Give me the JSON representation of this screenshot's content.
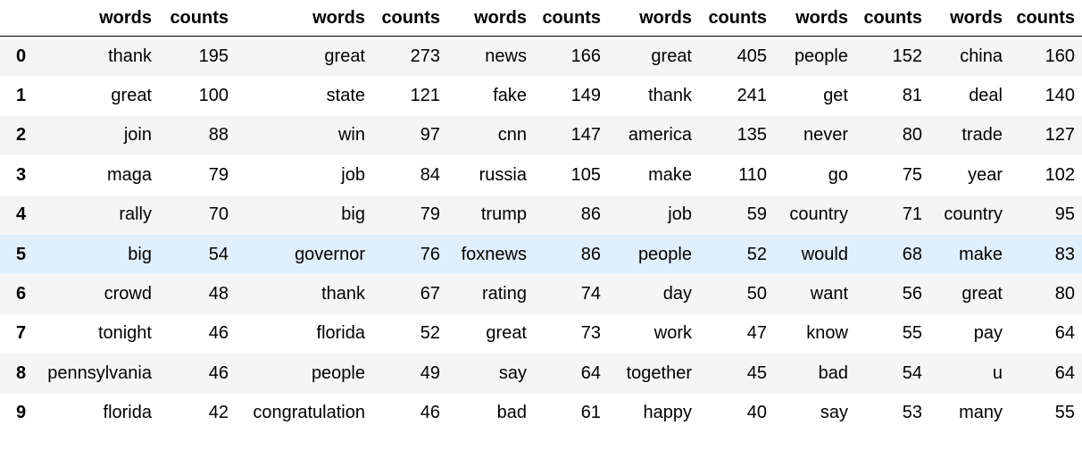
{
  "table": {
    "index_header": "",
    "columns": [
      "words",
      "counts",
      "words",
      "counts",
      "words",
      "counts",
      "words",
      "counts",
      "words",
      "counts",
      "words",
      "counts"
    ],
    "highlight_row": 5,
    "rows": [
      {
        "index": "0",
        "cells": [
          "thank",
          "195",
          "great",
          "273",
          "news",
          "166",
          "great",
          "405",
          "people",
          "152",
          "china",
          "160"
        ]
      },
      {
        "index": "1",
        "cells": [
          "great",
          "100",
          "state",
          "121",
          "fake",
          "149",
          "thank",
          "241",
          "get",
          "81",
          "deal",
          "140"
        ]
      },
      {
        "index": "2",
        "cells": [
          "join",
          "88",
          "win",
          "97",
          "cnn",
          "147",
          "america",
          "135",
          "never",
          "80",
          "trade",
          "127"
        ]
      },
      {
        "index": "3",
        "cells": [
          "maga",
          "79",
          "job",
          "84",
          "russia",
          "105",
          "make",
          "110",
          "go",
          "75",
          "year",
          "102"
        ]
      },
      {
        "index": "4",
        "cells": [
          "rally",
          "70",
          "big",
          "79",
          "trump",
          "86",
          "job",
          "59",
          "country",
          "71",
          "country",
          "95"
        ]
      },
      {
        "index": "5",
        "cells": [
          "big",
          "54",
          "governor",
          "76",
          "foxnews",
          "86",
          "people",
          "52",
          "would",
          "68",
          "make",
          "83"
        ]
      },
      {
        "index": "6",
        "cells": [
          "crowd",
          "48",
          "thank",
          "67",
          "rating",
          "74",
          "day",
          "50",
          "want",
          "56",
          "great",
          "80"
        ]
      },
      {
        "index": "7",
        "cells": [
          "tonight",
          "46",
          "florida",
          "52",
          "great",
          "73",
          "work",
          "47",
          "know",
          "55",
          "pay",
          "64"
        ]
      },
      {
        "index": "8",
        "cells": [
          "pennsylvania",
          "46",
          "people",
          "49",
          "say",
          "64",
          "together",
          "45",
          "bad",
          "54",
          "u",
          "64"
        ]
      },
      {
        "index": "9",
        "cells": [
          "florida",
          "42",
          "congratulation",
          "46",
          "bad",
          "61",
          "happy",
          "40",
          "say",
          "53",
          "many",
          "55"
        ]
      }
    ]
  }
}
